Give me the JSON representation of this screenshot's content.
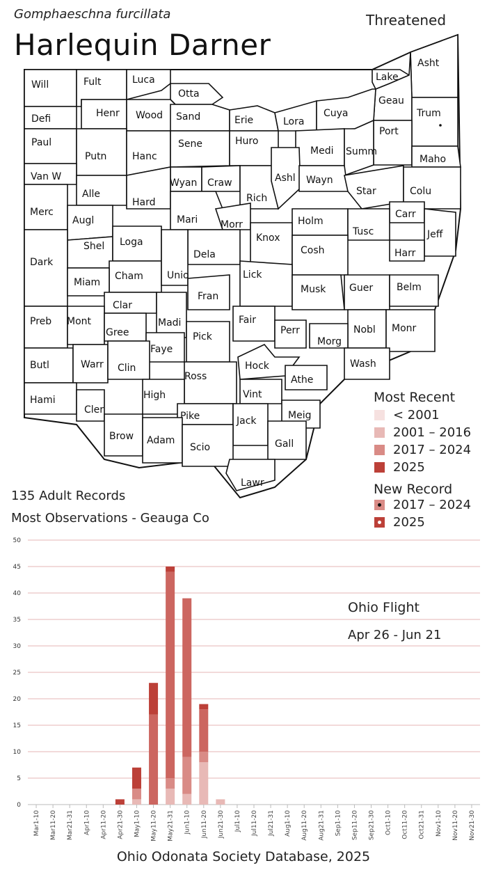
{
  "header": {
    "scientific_name": "Gomphaeschna furcillata",
    "common_name": "Harlequin Darner",
    "status": "Threatened"
  },
  "colors": {
    "lt2001": "#f6e1e0",
    "y2001_2016": "#e8b9b6",
    "y2017_2024": "#d98b86",
    "y2025": "#bc4038",
    "mid_bar": "#cc6660",
    "grid": "#e5b5b5"
  },
  "counties": [
    {
      "name": "Will",
      "status": "none"
    },
    {
      "name": "Fult",
      "status": "none"
    },
    {
      "name": "Luca",
      "status": "none"
    },
    {
      "name": "Otta",
      "status": "none"
    },
    {
      "name": "Lake",
      "status": "none"
    },
    {
      "name": "Asht",
      "status": "2017-2024"
    },
    {
      "name": "Geau",
      "status": "2025"
    },
    {
      "name": "Defi",
      "status": "none"
    },
    {
      "name": "Henr",
      "status": "none"
    },
    {
      "name": "Wood",
      "status": "none"
    },
    {
      "name": "Sand",
      "status": "none"
    },
    {
      "name": "Erie",
      "status": "none"
    },
    {
      "name": "Lora",
      "status": "none"
    },
    {
      "name": "Cuya",
      "status": "none"
    },
    {
      "name": "Trum",
      "status": "2017-2024",
      "new_record": "2017-2024"
    },
    {
      "name": "Port",
      "status": "2025"
    },
    {
      "name": "Paul",
      "status": "none"
    },
    {
      "name": "Putn",
      "status": "none"
    },
    {
      "name": "Hanc",
      "status": "none"
    },
    {
      "name": "Sene",
      "status": "none"
    },
    {
      "name": "Huro",
      "status": "none"
    },
    {
      "name": "Medi",
      "status": "none"
    },
    {
      "name": "Summ",
      "status": "2025"
    },
    {
      "name": "Maho",
      "status": "none"
    },
    {
      "name": "Van W",
      "status": "none"
    },
    {
      "name": "Alle",
      "status": "none"
    },
    {
      "name": "Wyan",
      "status": "none"
    },
    {
      "name": "Craw",
      "status": "none"
    },
    {
      "name": "Rich",
      "status": "none"
    },
    {
      "name": "Ashl",
      "status": "none"
    },
    {
      "name": "Wayn",
      "status": "none"
    },
    {
      "name": "Star",
      "status": "none"
    },
    {
      "name": "Colu",
      "status": "none"
    },
    {
      "name": "Hard",
      "status": "none"
    },
    {
      "name": "Merc",
      "status": "none"
    },
    {
      "name": "Augl",
      "status": "none"
    },
    {
      "name": "Mari",
      "status": "none"
    },
    {
      "name": "Morr",
      "status": "none"
    },
    {
      "name": "Holm",
      "status": "none"
    },
    {
      "name": "Carr",
      "status": "none"
    },
    {
      "name": "Jeff",
      "status": "none"
    },
    {
      "name": "Tusc",
      "status": "none"
    },
    {
      "name": "Knox",
      "status": "none"
    },
    {
      "name": "Shel",
      "status": "none"
    },
    {
      "name": "Loga",
      "status": "none"
    },
    {
      "name": "Dela",
      "status": "none"
    },
    {
      "name": "Cosh",
      "status": "none"
    },
    {
      "name": "Harr",
      "status": "none"
    },
    {
      "name": "Dark",
      "status": "none"
    },
    {
      "name": "Cham",
      "status": "none"
    },
    {
      "name": "Unio",
      "status": "none"
    },
    {
      "name": "Lick",
      "status": "none"
    },
    {
      "name": "Miam",
      "status": "none"
    },
    {
      "name": "Fran",
      "status": "none"
    },
    {
      "name": "Musk",
      "status": "none"
    },
    {
      "name": "Guer",
      "status": "none"
    },
    {
      "name": "Belm",
      "status": "none"
    },
    {
      "name": "Clar",
      "status": "none"
    },
    {
      "name": "Preb",
      "status": "none"
    },
    {
      "name": "Mont",
      "status": "none"
    },
    {
      "name": "Madi",
      "status": "none"
    },
    {
      "name": "Fair",
      "status": "none"
    },
    {
      "name": "Perr",
      "status": "none"
    },
    {
      "name": "Nobl",
      "status": "none"
    },
    {
      "name": "Monr",
      "status": "none"
    },
    {
      "name": "Gree",
      "status": "none"
    },
    {
      "name": "Pick",
      "status": "none"
    },
    {
      "name": "Morg",
      "status": "none"
    },
    {
      "name": "Faye",
      "status": "none"
    },
    {
      "name": "Butl",
      "status": "none"
    },
    {
      "name": "Warr",
      "status": "none"
    },
    {
      "name": "Clin",
      "status": "none"
    },
    {
      "name": "Hock",
      "status": "<2001"
    },
    {
      "name": "Wash",
      "status": "none"
    },
    {
      "name": "Ross",
      "status": "none"
    },
    {
      "name": "Athe",
      "status": "none"
    },
    {
      "name": "High",
      "status": "none"
    },
    {
      "name": "Vint",
      "status": "none"
    },
    {
      "name": "Hami",
      "status": "none"
    },
    {
      "name": "Cler",
      "status": "none"
    },
    {
      "name": "Pike",
      "status": "none"
    },
    {
      "name": "Jack",
      "status": "none"
    },
    {
      "name": "Meig",
      "status": "none"
    },
    {
      "name": "Brow",
      "status": "none"
    },
    {
      "name": "Adam",
      "status": "none"
    },
    {
      "name": "Scio",
      "status": "none"
    },
    {
      "name": "Gall",
      "status": "none"
    },
    {
      "name": "Lawr",
      "status": "none"
    }
  ],
  "legend": {
    "most_recent_title": "Most Recent",
    "most_recent": [
      {
        "label": "< 2001",
        "color": "#f6e1e0"
      },
      {
        "label": "2001 – 2016",
        "color": "#e8b9b6"
      },
      {
        "label": "2017 – 2024",
        "color": "#d98b86"
      },
      {
        "label": "2025",
        "color": "#bc4038"
      }
    ],
    "new_record_title": "New Record",
    "new_record": [
      {
        "label": "2017 – 2024",
        "color": "#d98b86",
        "dot": "#111111"
      },
      {
        "label": "2025",
        "color": "#bc4038",
        "dot": "#ffffff"
      }
    ]
  },
  "stats": {
    "records": "135 Adult Records",
    "most_observations": "Most Observations - Geauga Co"
  },
  "chart_data": {
    "type": "bar",
    "stacked": true,
    "categories": [
      "Mar1-10",
      "Mar11-20",
      "Mar21-31",
      "Apr1-10",
      "Apr11-20",
      "Apr21-30",
      "May1-10",
      "May11-20",
      "May21-31",
      "Jun1-10",
      "Jun11-20",
      "Jun21-30",
      "Jul1-10",
      "Jul11-20",
      "Jul21-31",
      "Aug1-10",
      "Aug11-20",
      "Aug21-31",
      "Sep1-10",
      "Sep11-20",
      "Sep21-30",
      "Oct1-10",
      "Oct11-20",
      "Oct21-31",
      "Nov1-10",
      "Nov11-20",
      "Nov21-30"
    ],
    "series": [
      {
        "color": "#e8b9b6",
        "values": [
          0,
          0,
          0,
          0,
          0,
          0,
          1,
          0,
          3,
          2,
          8,
          1,
          0,
          0,
          0,
          0,
          0,
          0,
          0,
          0,
          0,
          0,
          0,
          0,
          0,
          0,
          0
        ]
      },
      {
        "color": "#d98b86",
        "values": [
          0,
          0,
          0,
          0,
          0,
          0,
          2,
          0,
          2,
          7,
          2,
          0,
          0,
          0,
          0,
          0,
          0,
          0,
          0,
          0,
          0,
          0,
          0,
          0,
          0,
          0,
          0
        ]
      },
      {
        "color": "#cc6660",
        "values": [
          0,
          0,
          0,
          0,
          0,
          0,
          0,
          17,
          39,
          30,
          8,
          0,
          0,
          0,
          0,
          0,
          0,
          0,
          0,
          0,
          0,
          0,
          0,
          0,
          0,
          0,
          0
        ]
      },
      {
        "color": "#bc4038",
        "values": [
          0,
          0,
          0,
          0,
          0,
          1,
          4,
          6,
          1,
          0,
          1,
          0,
          0,
          0,
          0,
          0,
          0,
          0,
          0,
          0,
          0,
          0,
          0,
          0,
          0,
          0,
          0
        ]
      }
    ],
    "yticks": [
      0,
      5,
      10,
      15,
      20,
      25,
      30,
      35,
      40,
      45,
      50
    ],
    "ylim": [
      0,
      50
    ],
    "grid": true,
    "annotation_title": "Ohio Flight",
    "annotation_range": "Apr 26 - Jun 21"
  },
  "footer": "Ohio Odonata Society Database, 2025"
}
